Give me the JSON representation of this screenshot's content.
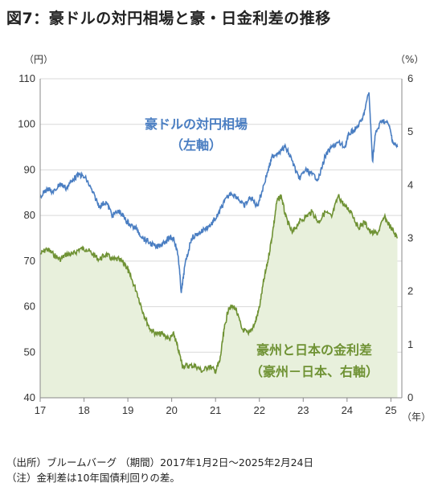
{
  "title": "図7：豪ドルの対円相場と豪・日金利差の推移",
  "notes": {
    "source": "（出所）ブルームバーグ （期間）2017年1月2日～2025年2月24日",
    "note": "（注）金利差は10年国債利回りの差。"
  },
  "colors": {
    "fx": "#4a7ec2",
    "spread_line": "#6f9234",
    "spread_fill": "#e8f0dc"
  },
  "chart_data": {
    "type": "line",
    "x_unit": "（年）",
    "x_ticks": [
      "17",
      "18",
      "19",
      "20",
      "21",
      "22",
      "23",
      "24",
      "25"
    ],
    "left_axis": {
      "unit": "（円）",
      "ylim": [
        40,
        110
      ],
      "ticks": [
        40,
        50,
        60,
        70,
        80,
        90,
        100,
        110
      ]
    },
    "right_axis": {
      "unit": "（%）",
      "ylim": [
        0,
        6
      ],
      "ticks": [
        0,
        1,
        2,
        3,
        4,
        5,
        6
      ]
    },
    "labels": {
      "fx_line1": "豪ドルの対円相場",
      "fx_line2": "（左軸）",
      "spread_line1": "豪州と日本の金利差",
      "spread_line2": "（豪州－日本、右軸）"
    },
    "series": [
      {
        "axis": "left",
        "x": [
          2017.0,
          2017.15,
          2017.3,
          2017.45,
          2017.6,
          2017.75,
          2017.9,
          2018.05,
          2018.2,
          2018.35,
          2018.5,
          2018.65,
          2018.8,
          2018.95,
          2019.05,
          2019.2,
          2019.35,
          2019.5,
          2019.65,
          2019.8,
          2019.95,
          2020.05,
          2020.15,
          2020.22,
          2020.3,
          2020.45,
          2020.6,
          2020.75,
          2020.9,
          2021.05,
          2021.2,
          2021.35,
          2021.5,
          2021.65,
          2021.8,
          2021.95,
          2022.05,
          2022.2,
          2022.3,
          2022.45,
          2022.6,
          2022.75,
          2022.9,
          2023.05,
          2023.2,
          2023.35,
          2023.5,
          2023.65,
          2023.8,
          2023.95,
          2024.05,
          2024.2,
          2024.35,
          2024.5,
          2024.58,
          2024.65,
          2024.8,
          2024.95,
          2025.05,
          2025.15
        ],
        "y": [
          84,
          86,
          85,
          87,
          86,
          88,
          89,
          88,
          85,
          82,
          83,
          80,
          81,
          79,
          78,
          77,
          75,
          74,
          73,
          74,
          75,
          75,
          71,
          63,
          69,
          75,
          76,
          77,
          78,
          80,
          83,
          85,
          84,
          82,
          84,
          82,
          85,
          90,
          93,
          94,
          95,
          92,
          88,
          90,
          89,
          88,
          93,
          95,
          96,
          95,
          98,
          99,
          101,
          107,
          92,
          98,
          101,
          100,
          96,
          95
        ]
      },
      {
        "axis": "right",
        "x": [
          2017.0,
          2017.15,
          2017.3,
          2017.45,
          2017.6,
          2017.75,
          2017.9,
          2018.05,
          2018.2,
          2018.35,
          2018.5,
          2018.65,
          2018.8,
          2018.95,
          2019.05,
          2019.2,
          2019.35,
          2019.5,
          2019.65,
          2019.8,
          2019.95,
          2020.05,
          2020.15,
          2020.25,
          2020.4,
          2020.55,
          2020.7,
          2020.85,
          2021.0,
          2021.1,
          2021.2,
          2021.3,
          2021.45,
          2021.6,
          2021.75,
          2021.9,
          2022.0,
          2022.1,
          2022.2,
          2022.3,
          2022.4,
          2022.5,
          2022.6,
          2022.75,
          2022.9,
          2023.05,
          2023.2,
          2023.35,
          2023.5,
          2023.65,
          2023.8,
          2023.95,
          2024.1,
          2024.25,
          2024.4,
          2024.55,
          2024.7,
          2024.85,
          2025.0,
          2025.15
        ],
        "y": [
          2.7,
          2.8,
          2.7,
          2.6,
          2.7,
          2.7,
          2.8,
          2.8,
          2.7,
          2.6,
          2.7,
          2.6,
          2.6,
          2.5,
          2.3,
          2.0,
          1.6,
          1.3,
          1.2,
          1.2,
          1.1,
          1.2,
          0.9,
          0.6,
          0.6,
          0.6,
          0.5,
          0.6,
          0.5,
          0.7,
          1.3,
          1.7,
          1.7,
          1.3,
          1.2,
          1.4,
          1.7,
          2.2,
          2.6,
          3.1,
          3.7,
          3.8,
          3.4,
          3.1,
          3.3,
          3.4,
          3.5,
          3.3,
          3.5,
          3.4,
          3.8,
          3.6,
          3.5,
          3.2,
          3.3,
          3.1,
          3.1,
          3.4,
          3.2,
          3.0
        ]
      }
    ]
  }
}
